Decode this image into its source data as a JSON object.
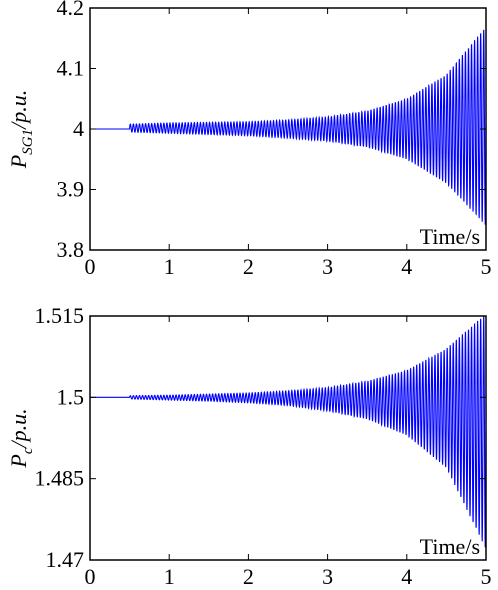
{
  "chart_data": [
    {
      "type": "line",
      "title": "",
      "ylabel_main": "P",
      "ylabel_sub": "SG1",
      "ylabel_unit": "/p.u.",
      "xlabel": "Time/s",
      "xlim": [
        0,
        5
      ],
      "ylim": [
        3.8,
        4.2
      ],
      "xticks": [
        "0",
        "1",
        "2",
        "3",
        "4",
        "5"
      ],
      "yticks": [
        "3.8",
        "3.9",
        "4",
        "4.1",
        "4.2"
      ],
      "grid": false,
      "line_color": "#0000ff",
      "series": [
        {
          "baseline": 4.0,
          "disturbance_start": 0.5,
          "envelope": {
            "x": [
              0.5,
              1.0,
              1.5,
              2.0,
              2.5,
              3.0,
              3.5,
              4.0,
              4.5,
              5.0
            ],
            "amplitude": [
              0.008,
              0.01,
              0.011,
              0.012,
              0.015,
              0.02,
              0.03,
              0.05,
              0.09,
              0.17
            ]
          },
          "envelope_min": {
            "x": [
              0.5,
              1.0,
              1.5,
              2.0,
              2.5,
              3.0,
              3.5,
              4.0,
              4.5,
              5.0
            ],
            "amplitude": [
              -0.005,
              -0.007,
              -0.009,
              -0.011,
              -0.015,
              -0.02,
              -0.03,
              -0.05,
              -0.09,
              -0.16
            ]
          }
        }
      ]
    },
    {
      "type": "line",
      "title": "",
      "ylabel_main": "P",
      "ylabel_sub": "c",
      "ylabel_unit": "/p.u.",
      "xlabel": "Time/s",
      "xlim": [
        0,
        5
      ],
      "ylim": [
        1.47,
        1.515
      ],
      "xticks": [
        "0",
        "1",
        "2",
        "3",
        "4",
        "5"
      ],
      "yticks": [
        "1.47",
        "1.485",
        "1.5",
        "1.515"
      ],
      "grid": false,
      "line_color": "#0000ff",
      "series": [
        {
          "baseline": 1.5,
          "disturbance_start": 0.5,
          "envelope": {
            "x": [
              0.5,
              1.0,
              1.5,
              2.0,
              2.5,
              3.0,
              3.5,
              4.0,
              4.5,
              5.0
            ],
            "amplitude": [
              0.0003,
              0.0004,
              0.0006,
              0.0008,
              0.0012,
              0.0018,
              0.003,
              0.005,
              0.009,
              0.0155
            ]
          },
          "envelope_min": {
            "x": [
              0.5,
              1.0,
              1.5,
              2.0,
              2.5,
              3.0,
              3.5,
              4.0,
              4.5,
              5.0
            ],
            "amplitude": [
              -0.0003,
              -0.0005,
              -0.0007,
              -0.001,
              -0.0015,
              -0.0025,
              -0.004,
              -0.007,
              -0.013,
              -0.028
            ]
          }
        }
      ]
    }
  ]
}
